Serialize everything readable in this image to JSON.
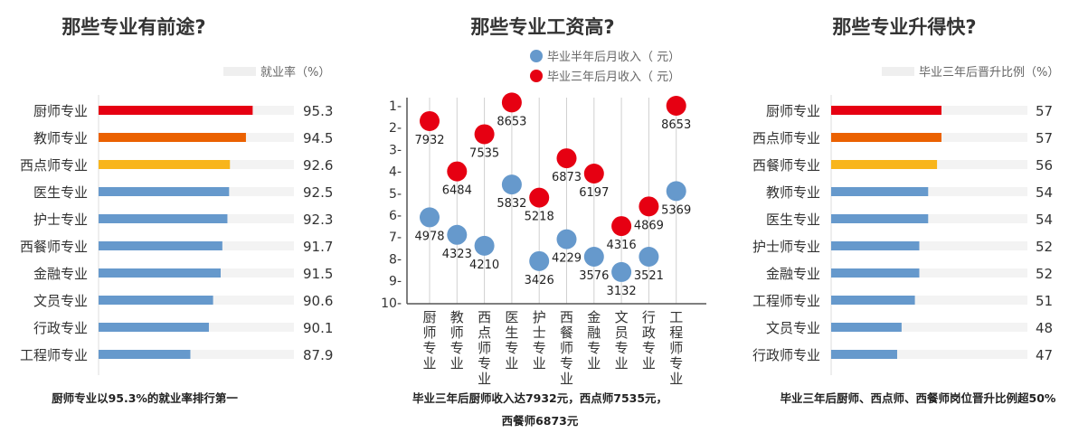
{
  "chart_data": [
    {
      "type": "bar",
      "title": "那些专业有前途?",
      "legend": "就业率（%）",
      "categories": [
        "厨师专业",
        "教师专业",
        "西点师专业",
        "医生专业",
        "护士专业",
        "西餐师专业",
        "金融专业",
        "文员专业",
        "行政专业",
        "工程师专业"
      ],
      "values": [
        95.3,
        94.5,
        92.6,
        92.5,
        92.3,
        91.7,
        91.5,
        90.6,
        90.1,
        87.9
      ],
      "value_labels": [
        "95.3",
        "94.5",
        "92.6",
        "92.5",
        "92.3",
        "91.7",
        "91.5",
        "90.6",
        "90.1",
        "87.9"
      ],
      "colors": [
        "#e60012",
        "#eb6100",
        "#f8b51c",
        "#6699cc",
        "#6699cc",
        "#6699cc",
        "#6699cc",
        "#6699cc",
        "#6699cc",
        "#6699cc"
      ],
      "xlim": [
        77,
        100.2
      ],
      "caption": "厨师专业以95.3%的就业率排行第一"
    },
    {
      "type": "scatter",
      "title": "那些专业工资高?",
      "categories": [
        "厨师专业",
        "教师专业",
        "西点师专业",
        "医生专业",
        "护士专业",
        "西餐师专业",
        "金融专业",
        "文员专业",
        "行政专业",
        "工程师专业"
      ],
      "yticks": [
        "1-",
        "2-",
        "3-",
        "4-",
        "5-",
        "6-",
        "7-",
        "8-",
        "9-",
        "10-"
      ],
      "ylim": [
        1,
        10
      ],
      "series": [
        {
          "name": "毕业半年后月收入（ 元）",
          "color": "#6699cc",
          "rank": [
            6.1,
            6.9,
            7.4,
            4.6,
            8.1,
            7.1,
            7.9,
            8.6,
            7.9,
            4.9
          ],
          "values": [
            "4978",
            "4323",
            "4210",
            "5832",
            "3426",
            "4229",
            "3576",
            "3132",
            "3521",
            "5369"
          ]
        },
        {
          "name": "毕业三年后月收入（ 元）",
          "color": "#e60012",
          "rank": [
            1.7,
            4.0,
            2.3,
            0.85,
            5.2,
            3.4,
            4.1,
            6.5,
            5.6,
            1.0
          ],
          "values": [
            "7932",
            "6484",
            "7535",
            "8653",
            "5218",
            "6873",
            "6197",
            "4316",
            "4869",
            "8653"
          ]
        }
      ],
      "caption_lines": [
        "毕业三年后厨师收入达7932元，西点师7535元，",
        "西餐师6873元"
      ]
    },
    {
      "type": "bar",
      "title": "那些专业升得快?",
      "legend": "毕业三年后晋升比例（%）",
      "categories": [
        "厨师专业",
        "西点师专业",
        "西餐师专业",
        "教师专业",
        "医生专业",
        "护士师专业",
        "金融专业",
        "工程师专业",
        "文员专业",
        "行政师专业"
      ],
      "values": [
        57,
        57,
        56,
        54,
        54,
        52,
        52,
        51,
        48,
        47
      ],
      "value_labels": [
        "57",
        "57",
        "56",
        "54",
        "54",
        "52",
        "52",
        "51",
        "48",
        "47"
      ],
      "colors": [
        "#e60012",
        "#eb6100",
        "#f8b51c",
        "#6699cc",
        "#6699cc",
        "#6699cc",
        "#6699cc",
        "#6699cc",
        "#6699cc",
        "#6699cc"
      ],
      "xlim": [
        32.1,
        76.4
      ],
      "caption": "毕业三年后厨师、西点师、西餐师岗位晋升比例超50%"
    }
  ]
}
